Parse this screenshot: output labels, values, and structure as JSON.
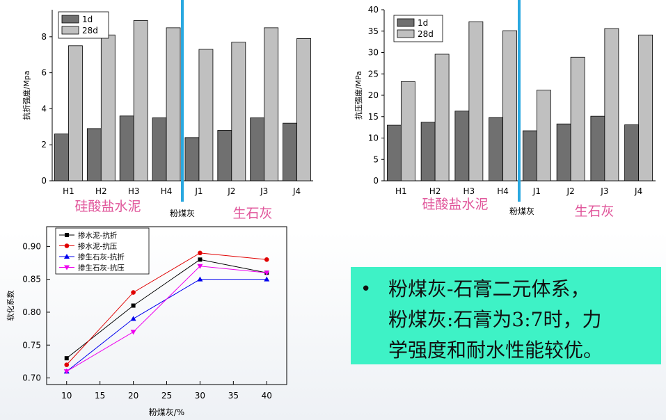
{
  "chart_data": [
    {
      "type": "bar",
      "categories": [
        "H1",
        "H2",
        "H3",
        "H4",
        "J1",
        "J2",
        "J3",
        "J4"
      ],
      "series": [
        {
          "name": "1d",
          "color": "#707070",
          "values": [
            2.6,
            2.9,
            3.6,
            3.5,
            2.4,
            2.8,
            3.5,
            3.2
          ]
        },
        {
          "name": "28d",
          "color": "#c0c0c0",
          "values": [
            7.5,
            8.1,
            8.9,
            8.5,
            7.3,
            7.7,
            8.5,
            7.9
          ]
        }
      ],
      "ylabel": "抗折强度/Mpa",
      "ylim": [
        0,
        9.5
      ],
      "yticks": [
        0,
        2,
        4,
        6,
        8
      ],
      "legend_position": "top-left",
      "group_labels": [
        "硅酸盐水泥",
        "粉煤灰",
        "生石灰"
      ],
      "divider_color": "#29a8e0"
    },
    {
      "type": "bar",
      "categories": [
        "H1",
        "H2",
        "H3",
        "H4",
        "J1",
        "J2",
        "J3",
        "J4"
      ],
      "series": [
        {
          "name": "1d",
          "color": "#707070",
          "values": [
            13,
            13.7,
            16.3,
            14.8,
            11.7,
            13.3,
            15.1,
            13.1
          ]
        },
        {
          "name": "28d",
          "color": "#c0c0c0",
          "values": [
            23.2,
            29.6,
            37.2,
            35.1,
            21.2,
            28.9,
            35.6,
            34.1
          ]
        }
      ],
      "ylabel": "抗压强度/MPa",
      "ylim": [
        0,
        40
      ],
      "yticks": [
        0,
        5,
        10,
        15,
        20,
        25,
        30,
        35,
        40
      ],
      "legend_position": "top-left",
      "group_labels": [
        "硅酸盐水泥",
        "粉煤灰",
        "生石灰"
      ],
      "divider_color": "#29a8e0"
    },
    {
      "type": "line",
      "x": [
        10,
        20,
        30,
        40
      ],
      "series": [
        {
          "name": "掺水泥-抗折",
          "color": "#000000",
          "marker": "square",
          "values": [
            0.73,
            0.81,
            0.88,
            0.86
          ]
        },
        {
          "name": "掺水泥-抗压",
          "color": "#e00000",
          "marker": "circle",
          "values": [
            0.72,
            0.83,
            0.89,
            0.88
          ]
        },
        {
          "name": "掺生石灰-抗折",
          "color": "#0000ee",
          "marker": "triangle",
          "values": [
            0.71,
            0.79,
            0.85,
            0.85
          ]
        },
        {
          "name": "掺生石灰-抗压",
          "color": "#ee00ee",
          "marker": "triangle-down",
          "values": [
            0.71,
            0.77,
            0.87,
            0.86
          ]
        }
      ],
      "xlabel": "粉煤灰/%",
      "ylabel": "软化系数",
      "xlim": [
        7,
        43
      ],
      "ylim": [
        0.69,
        0.93
      ],
      "xticks": [
        10,
        15,
        20,
        25,
        30,
        35,
        40
      ],
      "yticks": [
        0.7,
        0.75,
        0.8,
        0.85,
        0.9
      ],
      "legend_position": "top-left"
    }
  ],
  "callout": {
    "bullet": "•",
    "lines": [
      "粉煤灰-石膏二元体系，",
      "粉煤灰:石膏为3:7时，力",
      "学强度和耐水性能较优。"
    ],
    "background": "#3ef2c6"
  }
}
